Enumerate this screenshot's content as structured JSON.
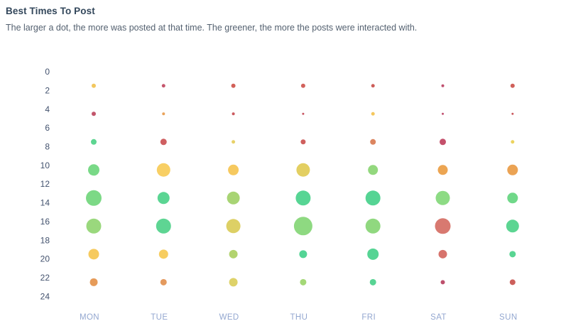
{
  "header": {
    "title": "Best Times To Post",
    "subtitle": "The larger a dot, the more was posted at that time. The greener, the more the posts were interacted with."
  },
  "colors": {
    "background": "#ffffff",
    "title_text": "#33475b",
    "subtitle_text": "#546170",
    "hour_label_text": "#42516d",
    "day_label_text": "#93a7d0"
  },
  "chart_data": {
    "type": "scatter",
    "subtype": "bubble-punchcard",
    "title": "Best Times To Post",
    "x_categories": [
      "MON",
      "TUE",
      "WED",
      "THU",
      "FRI",
      "SAT",
      "SUN"
    ],
    "y_tick_labels": [
      "0",
      "2",
      "4",
      "6",
      "8",
      "10",
      "12",
      "14",
      "16",
      "18",
      "20",
      "22",
      "24"
    ],
    "ylim": [
      0,
      24
    ],
    "y_axis": "hour of day",
    "grid": false,
    "legend": "none",
    "encoding": {
      "size": "dot radius (px) = relative number of posts at that time",
      "color": "interaction level gradient: red/maroon = low, orange/yellow = medium, green = high"
    },
    "series": [
      {
        "day": "MON",
        "points": [
          {
            "hour": 1.5,
            "radius": 3,
            "color": "#f2c75e"
          },
          {
            "hour": 4.5,
            "radius": 3,
            "color": "#c2566b"
          },
          {
            "hour": 7.5,
            "radius": 4,
            "color": "#5dd591"
          },
          {
            "hour": 10.5,
            "radius": 8,
            "color": "#79d987"
          },
          {
            "hour": 13.5,
            "radius": 11,
            "color": "#7cd986"
          },
          {
            "hour": 16.5,
            "radius": 10.5,
            "color": "#9ad87d"
          },
          {
            "hour": 19.5,
            "radius": 7.5,
            "color": "#f6ca5e"
          },
          {
            "hour": 22.5,
            "radius": 5.5,
            "color": "#e69b59"
          }
        ]
      },
      {
        "day": "TUE",
        "points": [
          {
            "hour": 1.5,
            "radius": 2.5,
            "color": "#c5566d"
          },
          {
            "hour": 4.5,
            "radius": 2,
            "color": "#e9a35b"
          },
          {
            "hour": 7.5,
            "radius": 4.5,
            "color": "#cf5f61"
          },
          {
            "hour": 10.5,
            "radius": 9.5,
            "color": "#f8cf64"
          },
          {
            "hour": 13.5,
            "radius": 8.5,
            "color": "#5bd593"
          },
          {
            "hour": 16.5,
            "radius": 10.5,
            "color": "#5ed593"
          },
          {
            "hour": 19.5,
            "radius": 6.5,
            "color": "#f7cd60"
          },
          {
            "hour": 22.5,
            "radius": 4.5,
            "color": "#e49a5e"
          }
        ]
      },
      {
        "day": "WED",
        "points": [
          {
            "hour": 1.5,
            "radius": 3,
            "color": "#d26058"
          },
          {
            "hour": 4.5,
            "radius": 2,
            "color": "#cb5a5e"
          },
          {
            "hour": 7.5,
            "radius": 2.5,
            "color": "#e8d168"
          },
          {
            "hour": 10.5,
            "radius": 7.5,
            "color": "#f6c95f"
          },
          {
            "hour": 13.5,
            "radius": 9,
            "color": "#a8d474"
          },
          {
            "hour": 16.5,
            "radius": 10,
            "color": "#ddd065"
          },
          {
            "hour": 19.5,
            "radius": 6,
            "color": "#b2d36e"
          },
          {
            "hour": 22.5,
            "radius": 6,
            "color": "#ded269"
          }
        ]
      },
      {
        "day": "THU",
        "points": [
          {
            "hour": 1.5,
            "radius": 3,
            "color": "#d2625c"
          },
          {
            "hour": 4.5,
            "radius": 1.5,
            "color": "#c85763"
          },
          {
            "hour": 7.5,
            "radius": 3.5,
            "color": "#cf5f5d"
          },
          {
            "hour": 10.5,
            "radius": 9.5,
            "color": "#e3cf62"
          },
          {
            "hour": 13.5,
            "radius": 10.5,
            "color": "#57d594"
          },
          {
            "hour": 16.5,
            "radius": 13,
            "color": "#8ed981"
          },
          {
            "hour": 19.5,
            "radius": 5.5,
            "color": "#53d495"
          },
          {
            "hour": 22.5,
            "radius": 4.5,
            "color": "#a4d877"
          }
        ]
      },
      {
        "day": "FRI",
        "points": [
          {
            "hour": 1.5,
            "radius": 2.5,
            "color": "#cd5e59"
          },
          {
            "hour": 4.5,
            "radius": 2.5,
            "color": "#f4c75e"
          },
          {
            "hour": 7.5,
            "radius": 4,
            "color": "#dc8560"
          },
          {
            "hour": 10.5,
            "radius": 7,
            "color": "#93d87e"
          },
          {
            "hour": 13.5,
            "radius": 10.5,
            "color": "#55d494"
          },
          {
            "hour": 16.5,
            "radius": 10.5,
            "color": "#90d87f"
          },
          {
            "hour": 19.5,
            "radius": 8,
            "color": "#56d494"
          },
          {
            "hour": 22.5,
            "radius": 4.5,
            "color": "#58d494"
          }
        ]
      },
      {
        "day": "SAT",
        "points": [
          {
            "hour": 1.5,
            "radius": 2,
            "color": "#bf4f6e"
          },
          {
            "hour": 4.5,
            "radius": 1.5,
            "color": "#c05070"
          },
          {
            "hour": 7.5,
            "radius": 4.5,
            "color": "#c4506b"
          },
          {
            "hour": 10.5,
            "radius": 7,
            "color": "#eca552"
          },
          {
            "hour": 13.5,
            "radius": 10,
            "color": "#8ddb84"
          },
          {
            "hour": 16.5,
            "radius": 11,
            "color": "#d87970"
          },
          {
            "hour": 19.5,
            "radius": 6,
            "color": "#d7736c"
          },
          {
            "hour": 22.5,
            "radius": 3,
            "color": "#bd4f6c"
          }
        ]
      },
      {
        "day": "SUN",
        "points": [
          {
            "hour": 1.5,
            "radius": 3,
            "color": "#d0605a"
          },
          {
            "hour": 4.5,
            "radius": 1.5,
            "color": "#ca5a5e"
          },
          {
            "hour": 7.5,
            "radius": 2.5,
            "color": "#ecd35e"
          },
          {
            "hour": 10.5,
            "radius": 7.5,
            "color": "#eba354"
          },
          {
            "hour": 13.5,
            "radius": 7.5,
            "color": "#70d889"
          },
          {
            "hour": 16.5,
            "radius": 9,
            "color": "#5cd592"
          },
          {
            "hour": 19.5,
            "radius": 4.5,
            "color": "#59d593"
          },
          {
            "hour": 22.5,
            "radius": 4,
            "color": "#cc5f5b"
          }
        ]
      }
    ]
  }
}
